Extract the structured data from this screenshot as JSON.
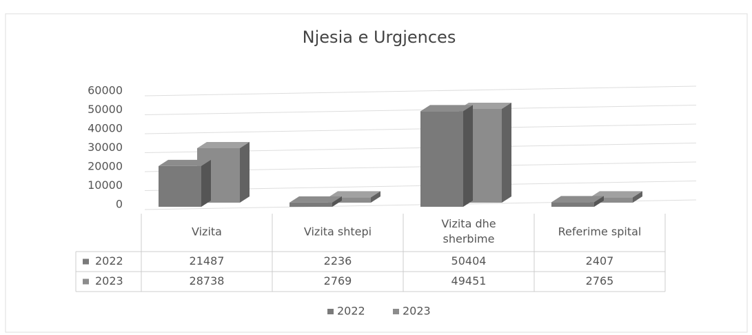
{
  "chart_data": {
    "type": "bar",
    "title": "Njesia e Urgjences",
    "categories": [
      "Vizita",
      "Vizita shtepi",
      "Vizita dhe sherbime",
      "Referime spital"
    ],
    "series": [
      {
        "name": "2022",
        "color": "#7a7a7a",
        "values": [
          21487,
          2236,
          50404,
          2407
        ]
      },
      {
        "name": "2023",
        "color": "#8c8c8c",
        "values": [
          28738,
          2769,
          49451,
          2765
        ]
      }
    ],
    "ylim": [
      0,
      60000
    ],
    "yticks": [
      0,
      10000,
      20000,
      30000,
      40000,
      50000,
      60000
    ],
    "grid": true,
    "legend": "bottom",
    "data_table": true
  }
}
